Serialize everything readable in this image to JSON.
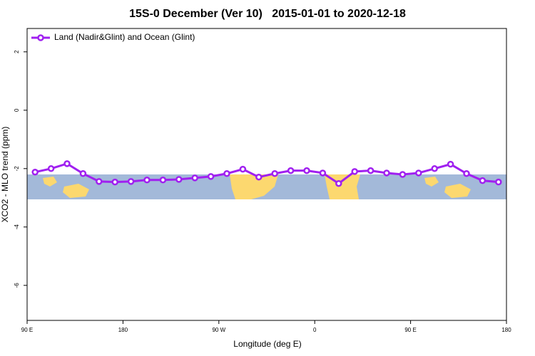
{
  "chart_data": {
    "type": "line",
    "title": "15S-0 December (Ver 10)   2015-01-01 to 2020-12-18",
    "xlabel": "Longitude (deg E)",
    "ylabel": "XCO2 - MLO trend (ppm)",
    "x": [
      97.5,
      112.5,
      127.5,
      142.5,
      157.5,
      172.5,
      187.5,
      202.5,
      217.5,
      232.5,
      247.5,
      262.5,
      277.5,
      292.5,
      307.5,
      322.5,
      337.5,
      352.5,
      367.5,
      382.5,
      397.5,
      412.5,
      427.5,
      442.5,
      457.5,
      472.5,
      487.5,
      502.5,
      517.5,
      532.5
    ],
    "series": [
      {
        "name": "Land (Nadir&Glint) and Ocean (Glint)",
        "color": "#a020f0",
        "values": [
          -2.12,
          -2.0,
          -1.83,
          -2.17,
          -2.44,
          -2.46,
          -2.44,
          -2.39,
          -2.39,
          -2.37,
          -2.32,
          -2.27,
          -2.17,
          -2.02,
          -2.29,
          -2.17,
          -2.07,
          -2.07,
          -2.15,
          -2.51,
          -2.1,
          -2.07,
          -2.15,
          -2.2,
          -2.15,
          -2.0,
          -1.85,
          -2.17,
          -2.41,
          -2.46
        ]
      }
    ],
    "xlim": [
      90,
      540
    ],
    "xticks": [
      {
        "value": 90,
        "label": "90 E"
      },
      {
        "value": 180,
        "label": "180"
      },
      {
        "value": 270,
        "label": "90 W"
      },
      {
        "value": 360,
        "label": "0"
      },
      {
        "value": 450,
        "label": "90 E"
      },
      {
        "value": 540,
        "label": "180"
      }
    ],
    "ylim": [
      -7.2,
      2.8
    ],
    "yticks": [
      2,
      0,
      -2,
      -4,
      -6
    ],
    "legend": "top-left"
  }
}
